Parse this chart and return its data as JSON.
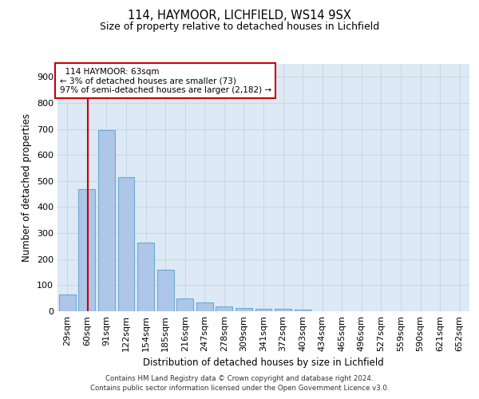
{
  "title1": "114, HAYMOOR, LICHFIELD, WS14 9SX",
  "title2": "Size of property relative to detached houses in Lichfield",
  "xlabel": "Distribution of detached houses by size in Lichfield",
  "ylabel": "Number of detached properties",
  "categories": [
    "29sqm",
    "60sqm",
    "91sqm",
    "122sqm",
    "154sqm",
    "185sqm",
    "216sqm",
    "247sqm",
    "278sqm",
    "309sqm",
    "341sqm",
    "372sqm",
    "403sqm",
    "434sqm",
    "465sqm",
    "496sqm",
    "527sqm",
    "559sqm",
    "590sqm",
    "621sqm",
    "652sqm"
  ],
  "values": [
    65,
    470,
    695,
    515,
    265,
    160,
    48,
    35,
    17,
    13,
    10,
    10,
    7,
    0,
    0,
    0,
    0,
    0,
    0,
    0,
    0
  ],
  "bar_color": "#aec6e8",
  "bar_edgecolor": "#6aaad4",
  "bar_linewidth": 0.8,
  "vline_color": "#cc0000",
  "vline_x": 1.03,
  "annotation_box_text": "  114 HAYMOOR: 63sqm\n← 3% of detached houses are smaller (73)\n97% of semi-detached houses are larger (2,182) →",
  "annotation_box_color": "#cc0000",
  "annotation_box_bg": "#ffffff",
  "ylim": [
    0,
    950
  ],
  "yticks": [
    0,
    100,
    200,
    300,
    400,
    500,
    600,
    700,
    800,
    900
  ],
  "grid_color": "#c8d8e8",
  "bg_color": "#ddeaf5",
  "footer1": "Contains HM Land Registry data © Crown copyright and database right 2024.",
  "footer2": "Contains public sector information licensed under the Open Government Licence v3.0."
}
